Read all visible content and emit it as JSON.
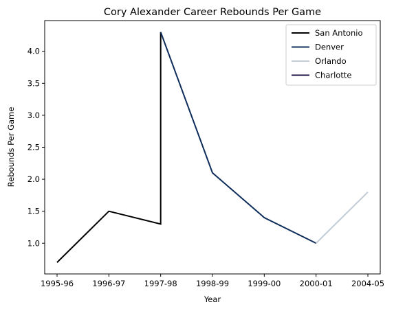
{
  "chart_data": {
    "type": "line",
    "title": "Cory Alexander Career Rebounds Per Game",
    "xlabel": "Year",
    "ylabel": "Rebounds Per Game",
    "categories": [
      "1995-96",
      "1996-97",
      "1997-98",
      "1998-99",
      "1999-00",
      "2000-01",
      "2004-05"
    ],
    "ylim": [
      0.52,
      4.48
    ],
    "yticks": [
      1.0,
      1.5,
      2.0,
      2.5,
      3.0,
      3.5,
      4.0
    ],
    "ytick_labels": [
      "1.0",
      "1.5",
      "2.0",
      "2.5",
      "3.0",
      "3.5",
      "4.0"
    ],
    "grid": false,
    "legend_position": "top-right",
    "series": [
      {
        "name": "San Antonio",
        "color": "#000000",
        "points": [
          [
            0,
            0.7
          ],
          [
            1,
            1.5
          ],
          [
            2,
            1.3
          ],
          [
            2,
            4.3
          ]
        ]
      },
      {
        "name": "Denver",
        "color": "#0d2c5a",
        "points": [
          [
            2,
            4.3
          ],
          [
            3,
            2.1
          ],
          [
            4,
            1.4
          ],
          [
            5,
            1.0
          ]
        ]
      },
      {
        "name": "Orlando",
        "color": "#c3ccd4",
        "points": [
          [
            5,
            1.0
          ],
          [
            6,
            1.8
          ]
        ]
      },
      {
        "name": "Charlotte",
        "color": "#1d1145",
        "points": []
      }
    ]
  }
}
